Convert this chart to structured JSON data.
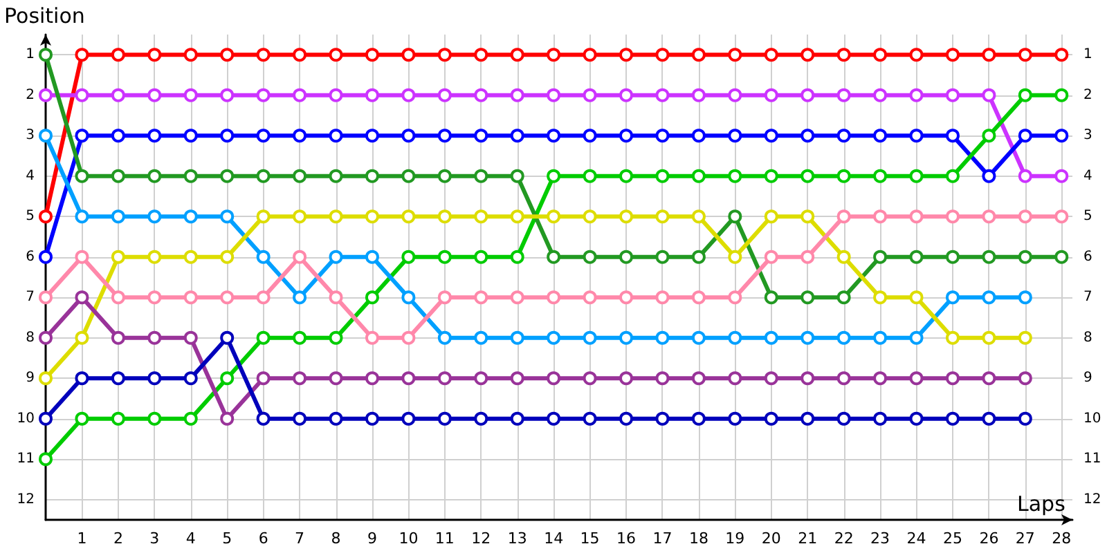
{
  "chart_data": {
    "type": "line",
    "xlabel": "Laps",
    "ylabel": "Position",
    "x": [
      0,
      1,
      2,
      3,
      4,
      5,
      6,
      7,
      8,
      9,
      10,
      11,
      12,
      13,
      14,
      15,
      16,
      17,
      18,
      19,
      20,
      21,
      22,
      23,
      24,
      25,
      26,
      27,
      28
    ],
    "series": [
      {
        "color": "#ff0000",
        "values": [
          5,
          1,
          1,
          1,
          1,
          1,
          1,
          1,
          1,
          1,
          1,
          1,
          1,
          1,
          1,
          1,
          1,
          1,
          1,
          1,
          1,
          1,
          1,
          1,
          1,
          1,
          1,
          1,
          1
        ]
      },
      {
        "color": "#cc33ff",
        "values": [
          2,
          2,
          2,
          2,
          2,
          2,
          2,
          2,
          2,
          2,
          2,
          2,
          2,
          2,
          2,
          2,
          2,
          2,
          2,
          2,
          2,
          2,
          2,
          2,
          2,
          2,
          2,
          4,
          4
        ]
      },
      {
        "color": "#0000ff",
        "values": [
          6,
          3,
          3,
          3,
          3,
          3,
          3,
          3,
          3,
          3,
          3,
          3,
          3,
          3,
          3,
          3,
          3,
          3,
          3,
          3,
          3,
          3,
          3,
          3,
          3,
          3,
          4,
          3,
          3
        ]
      },
      {
        "color": "#00cc00",
        "values": [
          11,
          10,
          10,
          10,
          10,
          9,
          8,
          8,
          8,
          7,
          6,
          6,
          6,
          6,
          4,
          4,
          4,
          4,
          4,
          4,
          4,
          4,
          4,
          4,
          4,
          4,
          3,
          2,
          2
        ]
      },
      {
        "color": "#229922",
        "values": [
          1,
          4,
          4,
          4,
          4,
          4,
          4,
          4,
          4,
          4,
          4,
          4,
          4,
          4,
          6,
          6,
          6,
          6,
          6,
          5,
          7,
          7,
          7,
          6,
          6,
          6,
          6,
          6,
          6
        ]
      },
      {
        "color": "#00a0ff",
        "values": [
          3,
          5,
          5,
          5,
          5,
          5,
          6,
          7,
          6,
          6,
          7,
          8,
          8,
          8,
          8,
          8,
          8,
          8,
          8,
          8,
          8,
          8,
          8,
          8,
          8,
          7,
          7,
          7,
          null
        ]
      },
      {
        "color": "#dddd00",
        "values": [
          9,
          8,
          6,
          6,
          6,
          6,
          5,
          5,
          5,
          5,
          5,
          5,
          5,
          5,
          5,
          5,
          5,
          5,
          5,
          6,
          5,
          5,
          6,
          7,
          7,
          8,
          8,
          8,
          null
        ]
      },
      {
        "color": "#ff88aa",
        "values": [
          7,
          6,
          7,
          7,
          7,
          7,
          7,
          6,
          7,
          8,
          8,
          7,
          7,
          7,
          7,
          7,
          7,
          7,
          7,
          7,
          6,
          6,
          5,
          5,
          5,
          5,
          5,
          5,
          5
        ]
      },
      {
        "color": "#993399",
        "values": [
          8,
          7,
          8,
          8,
          8,
          10,
          9,
          9,
          9,
          9,
          9,
          9,
          9,
          9,
          9,
          9,
          9,
          9,
          9,
          9,
          9,
          9,
          9,
          9,
          9,
          9,
          9,
          9,
          null
        ]
      },
      {
        "color": "#0000bb",
        "values": [
          10,
          9,
          9,
          9,
          9,
          8,
          10,
          10,
          10,
          10,
          10,
          10,
          10,
          10,
          10,
          10,
          10,
          10,
          10,
          10,
          10,
          10,
          10,
          10,
          10,
          10,
          10,
          10,
          null
        ]
      }
    ],
    "xlim": [
      0,
      28.3
    ],
    "xticks": [
      1,
      2,
      3,
      4,
      5,
      6,
      7,
      8,
      9,
      10,
      11,
      12,
      13,
      14,
      15,
      16,
      17,
      18,
      19,
      20,
      21,
      22,
      23,
      24,
      25,
      26,
      27,
      28
    ],
    "ylim": [
      12.5,
      0.5
    ],
    "yticks": [
      1,
      2,
      3,
      4,
      5,
      6,
      7,
      8,
      9,
      10,
      11,
      12
    ],
    "y2lim": [
      12.5,
      0.5
    ],
    "y2ticks": [
      1,
      2,
      3,
      4,
      5,
      6,
      7,
      8,
      9,
      10,
      11,
      12
    ],
    "grid": true,
    "marker": "circle",
    "line_style": "solid"
  }
}
